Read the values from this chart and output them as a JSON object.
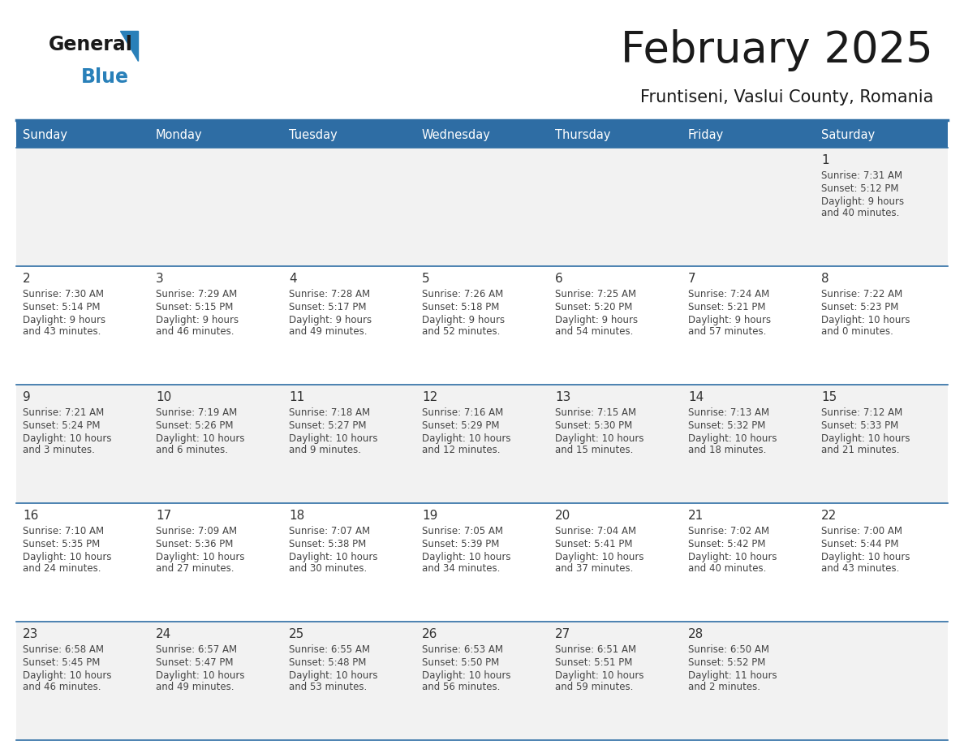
{
  "title": "February 2025",
  "subtitle": "Fruntiseni, Vaslui County, Romania",
  "days_of_week": [
    "Sunday",
    "Monday",
    "Tuesday",
    "Wednesday",
    "Thursday",
    "Friday",
    "Saturday"
  ],
  "header_bg": "#2E6DA4",
  "header_text": "#FFFFFF",
  "cell_bg_odd": "#F2F2F2",
  "cell_bg_even": "#FFFFFF",
  "border_color": "#2E6DA4",
  "day_number_color": "#333333",
  "text_color": "#444444",
  "title_color": "#1a1a1a",
  "logo_general_color": "#1a1a1a",
  "logo_blue_color": "#2980B9",
  "weeks": [
    [
      {
        "day": null,
        "sunrise": null,
        "sunset": null,
        "daylight": null
      },
      {
        "day": null,
        "sunrise": null,
        "sunset": null,
        "daylight": null
      },
      {
        "day": null,
        "sunrise": null,
        "sunset": null,
        "daylight": null
      },
      {
        "day": null,
        "sunrise": null,
        "sunset": null,
        "daylight": null
      },
      {
        "day": null,
        "sunrise": null,
        "sunset": null,
        "daylight": null
      },
      {
        "day": null,
        "sunrise": null,
        "sunset": null,
        "daylight": null
      },
      {
        "day": 1,
        "sunrise": "7:31 AM",
        "sunset": "5:12 PM",
        "daylight": "9 hours\nand 40 minutes."
      }
    ],
    [
      {
        "day": 2,
        "sunrise": "7:30 AM",
        "sunset": "5:14 PM",
        "daylight": "9 hours\nand 43 minutes."
      },
      {
        "day": 3,
        "sunrise": "7:29 AM",
        "sunset": "5:15 PM",
        "daylight": "9 hours\nand 46 minutes."
      },
      {
        "day": 4,
        "sunrise": "7:28 AM",
        "sunset": "5:17 PM",
        "daylight": "9 hours\nand 49 minutes."
      },
      {
        "day": 5,
        "sunrise": "7:26 AM",
        "sunset": "5:18 PM",
        "daylight": "9 hours\nand 52 minutes."
      },
      {
        "day": 6,
        "sunrise": "7:25 AM",
        "sunset": "5:20 PM",
        "daylight": "9 hours\nand 54 minutes."
      },
      {
        "day": 7,
        "sunrise": "7:24 AM",
        "sunset": "5:21 PM",
        "daylight": "9 hours\nand 57 minutes."
      },
      {
        "day": 8,
        "sunrise": "7:22 AM",
        "sunset": "5:23 PM",
        "daylight": "10 hours\nand 0 minutes."
      }
    ],
    [
      {
        "day": 9,
        "sunrise": "7:21 AM",
        "sunset": "5:24 PM",
        "daylight": "10 hours\nand 3 minutes."
      },
      {
        "day": 10,
        "sunrise": "7:19 AM",
        "sunset": "5:26 PM",
        "daylight": "10 hours\nand 6 minutes."
      },
      {
        "day": 11,
        "sunrise": "7:18 AM",
        "sunset": "5:27 PM",
        "daylight": "10 hours\nand 9 minutes."
      },
      {
        "day": 12,
        "sunrise": "7:16 AM",
        "sunset": "5:29 PM",
        "daylight": "10 hours\nand 12 minutes."
      },
      {
        "day": 13,
        "sunrise": "7:15 AM",
        "sunset": "5:30 PM",
        "daylight": "10 hours\nand 15 minutes."
      },
      {
        "day": 14,
        "sunrise": "7:13 AM",
        "sunset": "5:32 PM",
        "daylight": "10 hours\nand 18 minutes."
      },
      {
        "day": 15,
        "sunrise": "7:12 AM",
        "sunset": "5:33 PM",
        "daylight": "10 hours\nand 21 minutes."
      }
    ],
    [
      {
        "day": 16,
        "sunrise": "7:10 AM",
        "sunset": "5:35 PM",
        "daylight": "10 hours\nand 24 minutes."
      },
      {
        "day": 17,
        "sunrise": "7:09 AM",
        "sunset": "5:36 PM",
        "daylight": "10 hours\nand 27 minutes."
      },
      {
        "day": 18,
        "sunrise": "7:07 AM",
        "sunset": "5:38 PM",
        "daylight": "10 hours\nand 30 minutes."
      },
      {
        "day": 19,
        "sunrise": "7:05 AM",
        "sunset": "5:39 PM",
        "daylight": "10 hours\nand 34 minutes."
      },
      {
        "day": 20,
        "sunrise": "7:04 AM",
        "sunset": "5:41 PM",
        "daylight": "10 hours\nand 37 minutes."
      },
      {
        "day": 21,
        "sunrise": "7:02 AM",
        "sunset": "5:42 PM",
        "daylight": "10 hours\nand 40 minutes."
      },
      {
        "day": 22,
        "sunrise": "7:00 AM",
        "sunset": "5:44 PM",
        "daylight": "10 hours\nand 43 minutes."
      }
    ],
    [
      {
        "day": 23,
        "sunrise": "6:58 AM",
        "sunset": "5:45 PM",
        "daylight": "10 hours\nand 46 minutes."
      },
      {
        "day": 24,
        "sunrise": "6:57 AM",
        "sunset": "5:47 PM",
        "daylight": "10 hours\nand 49 minutes."
      },
      {
        "day": 25,
        "sunrise": "6:55 AM",
        "sunset": "5:48 PM",
        "daylight": "10 hours\nand 53 minutes."
      },
      {
        "day": 26,
        "sunrise": "6:53 AM",
        "sunset": "5:50 PM",
        "daylight": "10 hours\nand 56 minutes."
      },
      {
        "day": 27,
        "sunrise": "6:51 AM",
        "sunset": "5:51 PM",
        "daylight": "10 hours\nand 59 minutes."
      },
      {
        "day": 28,
        "sunrise": "6:50 AM",
        "sunset": "5:52 PM",
        "daylight": "11 hours\nand 2 minutes."
      },
      {
        "day": null,
        "sunrise": null,
        "sunset": null,
        "daylight": null
      }
    ]
  ]
}
